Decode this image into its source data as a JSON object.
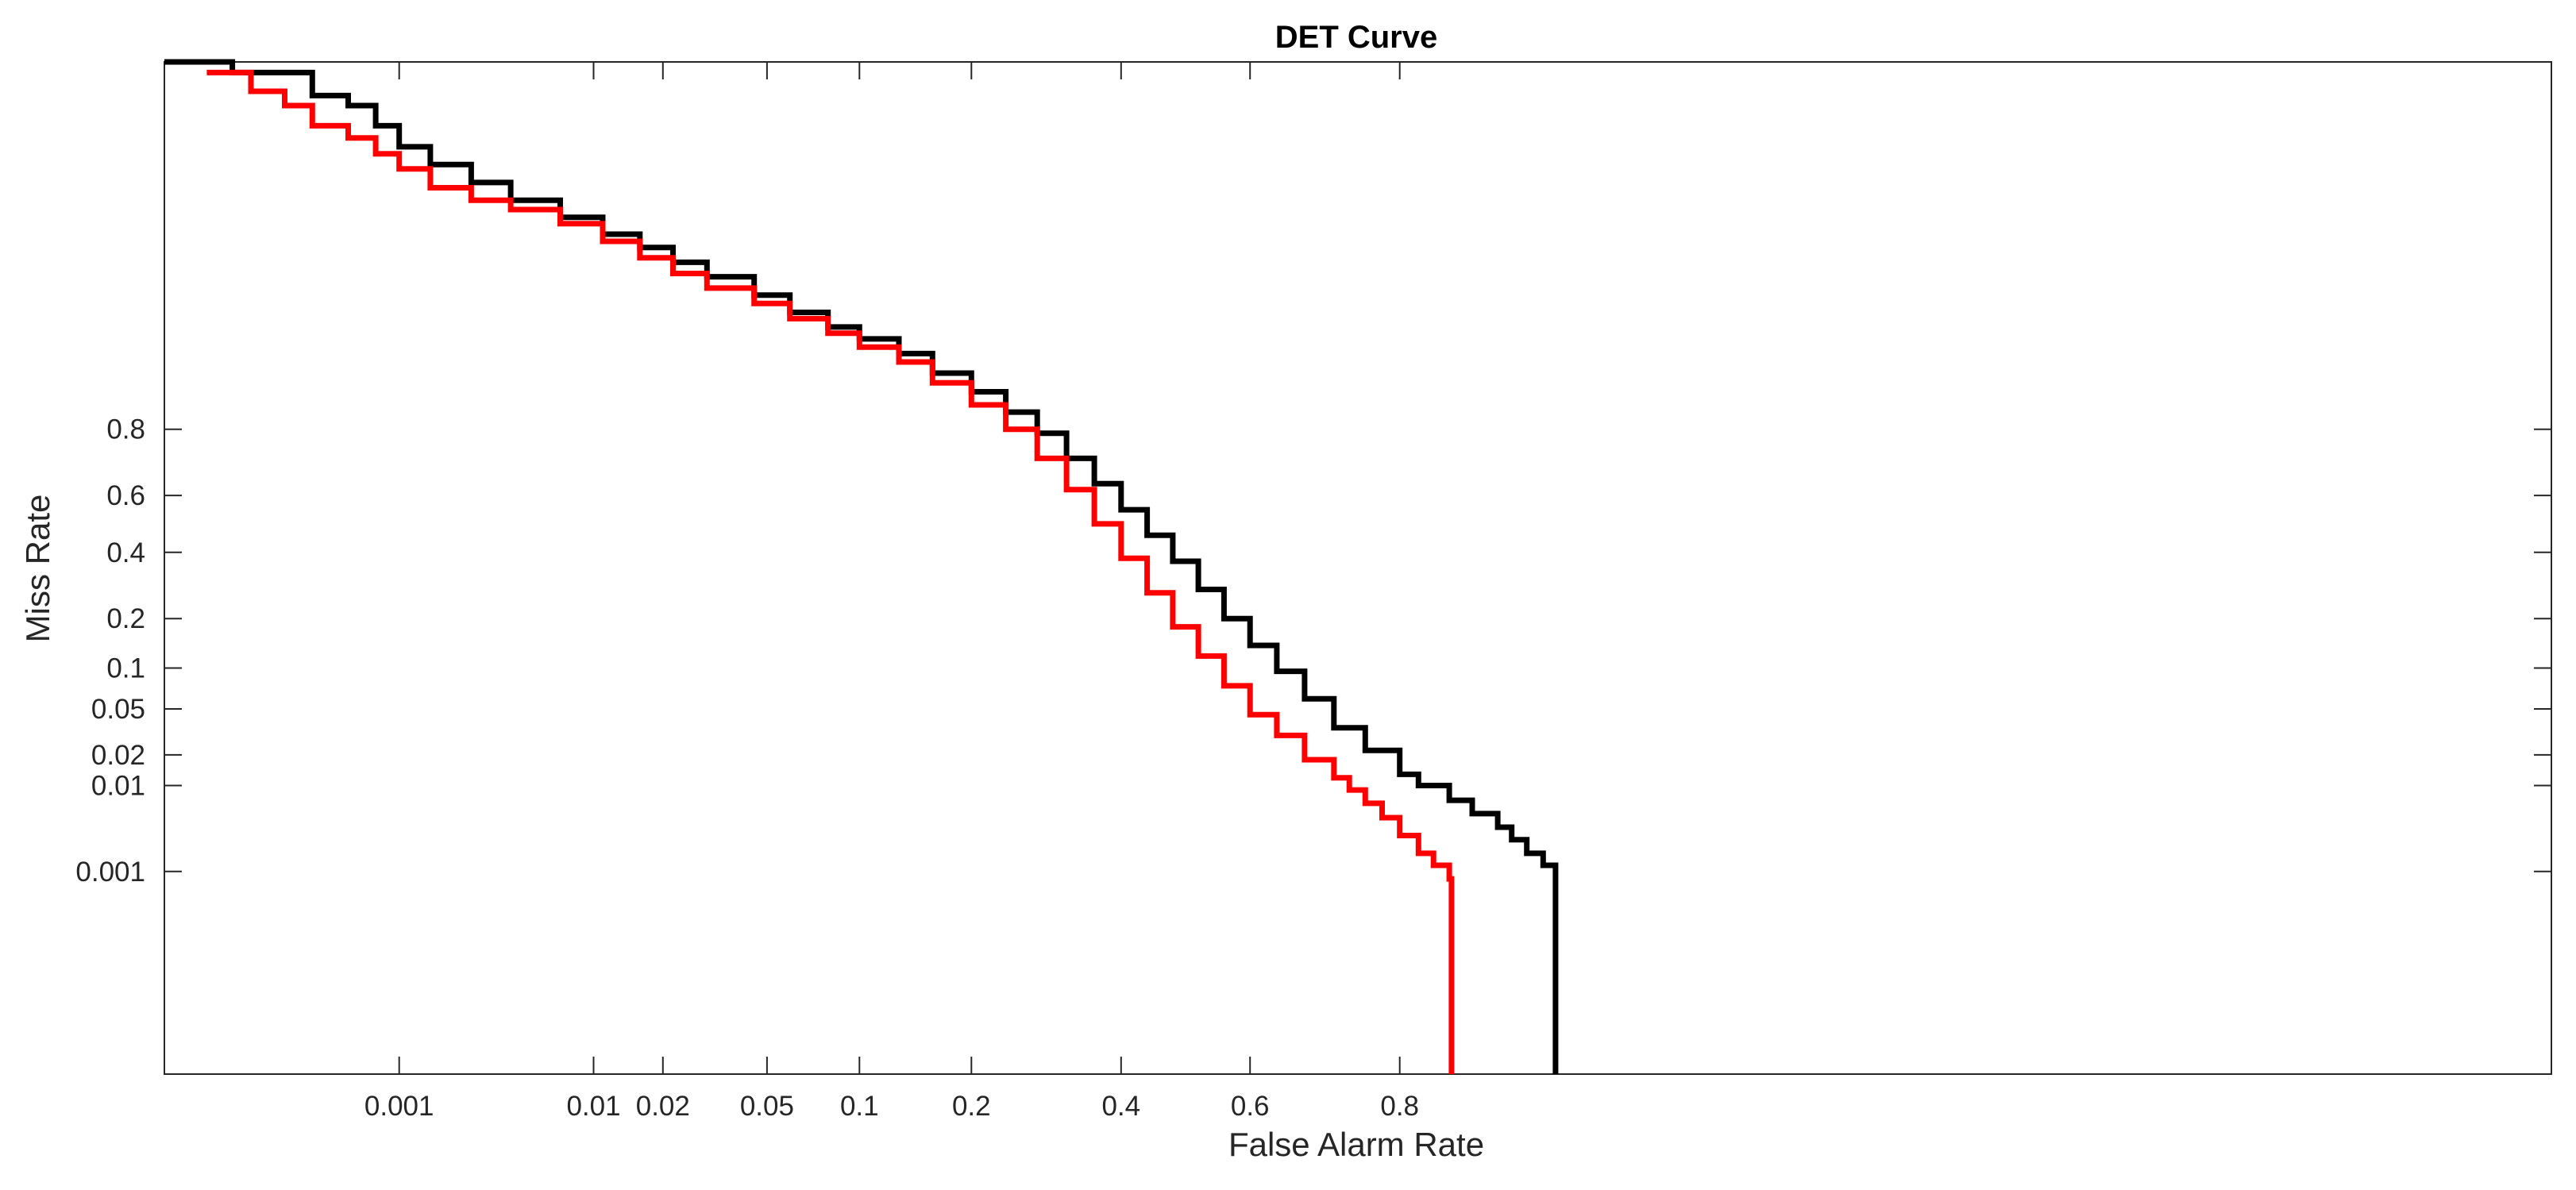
{
  "chart_data": {
    "type": "line",
    "title": "DET Curve",
    "xlabel": "False Alarm Rate",
    "ylabel": "Miss Rate",
    "x_scale": "normal-deviate",
    "y_scale": "normal-deviate",
    "xlim": [
      3e-05,
      0.99999996
    ],
    "ylim": [
      5e-07,
      0.99998
    ],
    "grid": false,
    "x_ticks": [
      0.001,
      0.01,
      0.02,
      0.05,
      0.1,
      0.2,
      0.4,
      0.6,
      0.8
    ],
    "x_tick_labels": [
      "0.001",
      "0.01",
      "0.02",
      "0.05",
      "0.1",
      "0.2",
      "0.4",
      "0.6",
      "0.8"
    ],
    "y_ticks": [
      0.001,
      0.01,
      0.02,
      0.05,
      0.1,
      0.2,
      0.4,
      0.6,
      0.8
    ],
    "y_tick_labels": [
      "0.001",
      "0.01",
      "0.02",
      "0.05",
      "0.1",
      "0.2",
      "0.4",
      "0.6",
      "0.8"
    ],
    "series": [
      {
        "color": "#000000",
        "x": [
          3e-05,
          9e-05,
          9e-05,
          0.0003,
          0.0003,
          0.0005,
          0.00073,
          0.001,
          0.0015,
          0.0025,
          0.004,
          0.007,
          0.011,
          0.016,
          0.022,
          0.03,
          0.045,
          0.06,
          0.08,
          0.1,
          0.13,
          0.16,
          0.2,
          0.24,
          0.28,
          0.32,
          0.36,
          0.4,
          0.44,
          0.48,
          0.52,
          0.56,
          0.6,
          0.64,
          0.68,
          0.72,
          0.76,
          0.8,
          0.82,
          0.85,
          0.87,
          0.89,
          0.9,
          0.91,
          0.92,
          0.927,
          0.927
        ],
        "y": [
          0.99998,
          0.99998,
          0.99997,
          0.99997,
          0.99993,
          0.9999,
          0.9998,
          0.9996,
          0.9993,
          0.9988,
          0.998,
          0.9968,
          0.995,
          0.993,
          0.99,
          0.986,
          0.979,
          0.97,
          0.96,
          0.95,
          0.935,
          0.91,
          0.88,
          0.84,
          0.79,
          0.72,
          0.64,
          0.55,
          0.46,
          0.37,
          0.28,
          0.2,
          0.14,
          0.095,
          0.06,
          0.035,
          0.022,
          0.013,
          0.01,
          0.007,
          0.005,
          0.0035,
          0.0025,
          0.0017,
          0.0012,
          0.0012,
          5e-07
        ]
      },
      {
        "color": "#ff0000",
        "x": [
          6e-05,
          0.00012,
          0.0002,
          0.0003,
          0.0005,
          0.00073,
          0.001,
          0.0015,
          0.0025,
          0.004,
          0.007,
          0.011,
          0.016,
          0.022,
          0.03,
          0.045,
          0.06,
          0.08,
          0.1,
          0.13,
          0.16,
          0.2,
          0.24,
          0.28,
          0.32,
          0.36,
          0.4,
          0.44,
          0.48,
          0.52,
          0.56,
          0.6,
          0.64,
          0.68,
          0.72,
          0.74,
          0.76,
          0.78,
          0.8,
          0.82,
          0.835,
          0.845,
          0.85,
          0.852,
          0.852
        ],
        "y": [
          0.99997,
          0.99994,
          0.9999,
          0.9998,
          0.9997,
          0.9995,
          0.9992,
          0.9986,
          0.998,
          0.9974,
          0.9962,
          0.994,
          0.991,
          0.987,
          0.982,
          0.975,
          0.966,
          0.955,
          0.942,
          0.925,
          0.895,
          0.855,
          0.8,
          0.72,
          0.62,
          0.5,
          0.38,
          0.27,
          0.18,
          0.12,
          0.075,
          0.045,
          0.03,
          0.018,
          0.012,
          0.009,
          0.0065,
          0.0045,
          0.0028,
          0.0017,
          0.0012,
          0.0012,
          0.0008,
          0.0002,
          5e-07
        ]
      }
    ]
  }
}
